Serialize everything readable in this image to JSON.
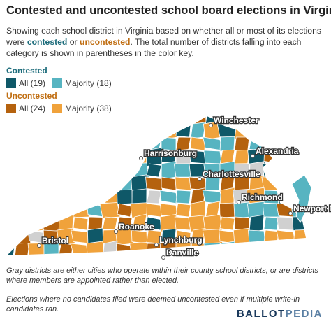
{
  "header": {
    "title": "Contested and uncontested school board elections in Virginia",
    "subtitle": [
      "Showing each school district in Virginia based on whether all or most of its elections were ",
      "contested",
      " or ",
      "uncontested",
      ". The total number of districts falling into each category is shown in parentheses in the color key."
    ]
  },
  "legend": [
    {
      "heading": "Contested",
      "color": "#1b6b7a",
      "items": [
        {
          "label": "All (19)",
          "color": "#0f5868"
        },
        {
          "label": "Majority (18)",
          "color": "#57b4c1"
        }
      ]
    },
    {
      "heading": "Uncontested",
      "color": "#c06e12",
      "items": [
        {
          "label": "All (24)",
          "color": "#b5620e"
        },
        {
          "label": "Majority (38)",
          "color": "#f0a23b"
        }
      ]
    }
  ],
  "map": {
    "cities": [
      "Winchester",
      "Alexandria",
      "Harrisonburg",
      "Charlottesville",
      "Richmond",
      "Newport News",
      "Roanoke",
      "Lynchburg",
      "Bristol",
      "Danville"
    ]
  },
  "notes": [
    "Gray districts are either cities who operate within their county school districts, or are districts where members are appointed rather than elected.",
    "Elections where no candidates filed were deemed uncontested even if multiple write-in candidates ran."
  ],
  "logo": [
    "BALLOT",
    "PEDIA"
  ]
}
